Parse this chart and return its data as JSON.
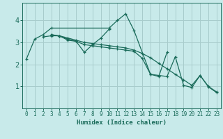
{
  "xlabel": "Humidex (Indice chaleur)",
  "bg_color": "#c8eaea",
  "grid_color": "#a8cccc",
  "line_color": "#1a6b5a",
  "xlim": [
    -0.5,
    23.5
  ],
  "ylim": [
    0,
    4.8
  ],
  "yticks": [
    1,
    2,
    3,
    4
  ],
  "xticks": [
    0,
    1,
    2,
    3,
    4,
    5,
    6,
    7,
    8,
    9,
    10,
    11,
    12,
    13,
    14,
    15,
    16,
    17,
    18,
    19,
    20,
    21,
    22,
    23
  ],
  "curves": [
    {
      "x": [
        0,
        1,
        2,
        3,
        10,
        11,
        12,
        13,
        15,
        16,
        17
      ],
      "y": [
        2.25,
        3.15,
        3.35,
        3.65,
        3.65,
        4.0,
        4.3,
        3.55,
        1.55,
        1.45,
        2.55
      ]
    },
    {
      "x": [
        2,
        3,
        4,
        5,
        6,
        7,
        8,
        9,
        10
      ],
      "y": [
        3.25,
        3.3,
        3.3,
        3.1,
        3.05,
        2.55,
        2.9,
        3.2,
        3.6
      ]
    },
    {
      "x": [
        3,
        4,
        5,
        6,
        7,
        8,
        9,
        10,
        11,
        12,
        13,
        14,
        15,
        16,
        17,
        18,
        19,
        20,
        21,
        22,
        23
      ],
      "y": [
        3.35,
        3.3,
        3.2,
        3.1,
        3.0,
        2.95,
        2.9,
        2.85,
        2.8,
        2.75,
        2.65,
        2.5,
        2.3,
        2.05,
        1.8,
        1.55,
        1.3,
        1.05,
        1.5,
        1.0,
        0.75
      ]
    },
    {
      "x": [
        3,
        4,
        5,
        6,
        7,
        8,
        9,
        10,
        11,
        12,
        13,
        14,
        15,
        16,
        17,
        18,
        19,
        20,
        21,
        22,
        23
      ],
      "y": [
        3.35,
        3.28,
        3.15,
        3.05,
        2.9,
        2.85,
        2.8,
        2.75,
        2.7,
        2.65,
        2.6,
        2.28,
        1.55,
        1.5,
        1.45,
        2.35,
        1.05,
        0.95,
        1.5,
        0.98,
        0.72
      ]
    }
  ]
}
